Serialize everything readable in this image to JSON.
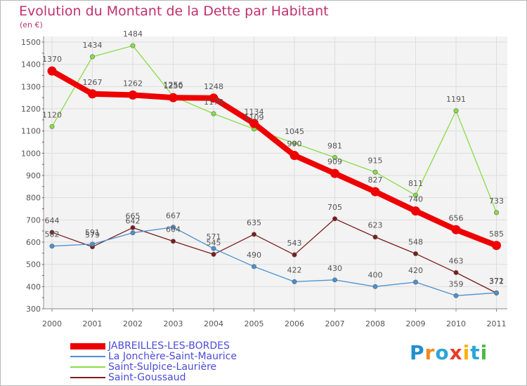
{
  "header": {
    "title": "Evolution du Montant de la Dette par Habitant",
    "unit": "(en €)"
  },
  "logo_text": "Proxiti",
  "chart_data": {
    "type": "line",
    "title": "Evolution du Montant de la Dette par Habitant",
    "xlabel": "",
    "ylabel": "(en €)",
    "categories": [
      "2000",
      "2001",
      "2002",
      "2003",
      "2004",
      "2005",
      "2006",
      "2007",
      "2008",
      "2009",
      "2010",
      "2011"
    ],
    "ylim": [
      300,
      1500
    ],
    "yticks": [
      300,
      400,
      500,
      600,
      700,
      800,
      900,
      1000,
      1100,
      1200,
      1300,
      1400,
      1500
    ],
    "grid": true,
    "legend_position": "bottom-left",
    "series": [
      {
        "name": "JABREILLES-LES-BORDES",
        "color": "#ee0000",
        "values": [
          1370,
          1267,
          1262,
          1250,
          1248,
          1134,
          990,
          909,
          827,
          740,
          656,
          585
        ]
      },
      {
        "name": "La Jonchère-Saint-Maurice",
        "color": "#4a90d0",
        "values": [
          582,
          591,
          642,
          667,
          571,
          490,
          422,
          430,
          400,
          420,
          359,
          372
        ]
      },
      {
        "name": "Saint-Sulpice-Laurière",
        "color": "#88dd44",
        "values": [
          1120,
          1434,
          1484,
          1256,
          1178,
          1109,
          1045,
          981,
          915,
          811,
          1191,
          733
        ]
      },
      {
        "name": "Saint-Goussaud",
        "color": "#7a1c1c",
        "values": [
          644,
          579,
          665,
          604,
          545,
          635,
          543,
          705,
          623,
          548,
          463,
          371
        ]
      }
    ]
  }
}
